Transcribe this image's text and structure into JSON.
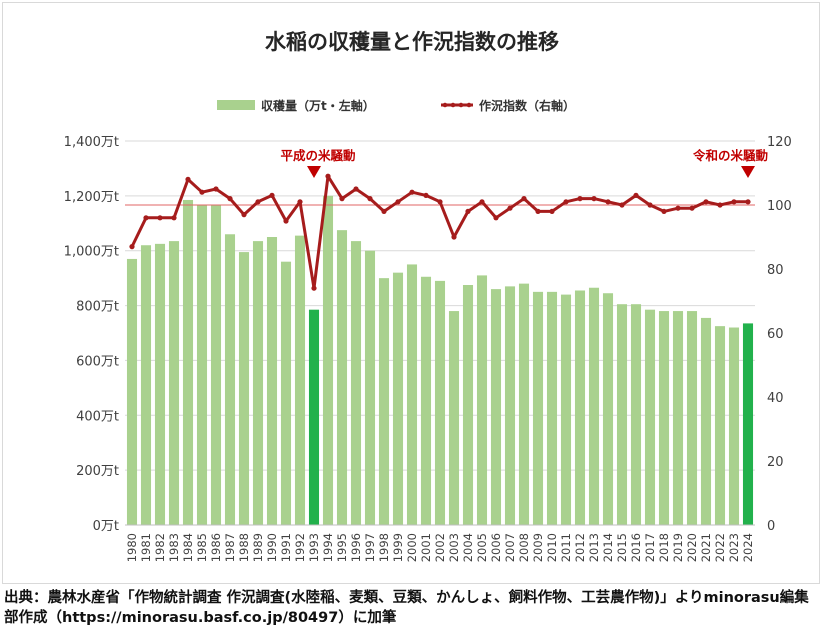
{
  "chart_data": {
    "type": "bar",
    "title": "水稲の収穫量と作況指数の推移",
    "legend": [
      {
        "name": "収穫量（万t・左軸）",
        "color": "#a9d18e",
        "kind": "bar"
      },
      {
        "name": "作況指数（右軸）",
        "color": "#a61c1c",
        "kind": "line"
      }
    ],
    "legend_position": "top-center",
    "categories": [
      "1980",
      "1981",
      "1982",
      "1983",
      "1984",
      "1985",
      "1986",
      "1987",
      "1988",
      "1989",
      "1990",
      "1991",
      "1992",
      "1993",
      "1994",
      "1995",
      "1996",
      "1997",
      "1998",
      "1999",
      "2000",
      "2001",
      "2002",
      "2003",
      "2004",
      "2005",
      "2006",
      "2007",
      "2008",
      "2009",
      "2010",
      "2011",
      "2012",
      "2013",
      "2014",
      "2015",
      "2016",
      "2017",
      "2018",
      "2019",
      "2020",
      "2021",
      "2022",
      "2023",
      "2024"
    ],
    "series": [
      {
        "name": "収穫量（万t・左軸）",
        "axis": "left",
        "type": "bar",
        "values": [
          970,
          1020,
          1025,
          1035,
          1185,
          1165,
          1165,
          1060,
          995,
          1035,
          1050,
          960,
          1055,
          785,
          1200,
          1075,
          1035,
          1000,
          900,
          920,
          950,
          905,
          890,
          780,
          875,
          910,
          860,
          870,
          880,
          850,
          850,
          840,
          855,
          865,
          845,
          805,
          805,
          785,
          780,
          780,
          780,
          755,
          725,
          720,
          735
        ],
        "highlight": [
          13,
          44
        ],
        "highlight_color": "#22b14c"
      },
      {
        "name": "作況指数（右軸）",
        "axis": "right",
        "type": "line",
        "values": [
          87,
          96,
          96,
          96,
          108,
          104,
          105,
          102,
          97,
          101,
          103,
          95,
          101,
          74,
          109,
          102,
          105,
          102,
          98,
          101,
          104,
          103,
          101,
          90,
          98,
          101,
          96,
          99,
          102,
          98,
          98,
          101,
          102,
          102,
          101,
          100,
          103,
          100,
          98,
          99,
          99,
          101,
          100,
          101,
          101
        ]
      }
    ],
    "reference_line": {
      "axis": "right",
      "value": 100,
      "color": "#e06666"
    },
    "left_axis": {
      "ylim": [
        0,
        1400
      ],
      "ticks": [
        0,
        200,
        400,
        600,
        800,
        1000,
        1200,
        1400
      ],
      "tick_labels": [
        "0万t",
        "200万t",
        "400万t",
        "600万t",
        "800万t",
        "1,000万t",
        "1,200万t",
        "1,400万t"
      ]
    },
    "right_axis": {
      "ylim": [
        0,
        120
      ],
      "ticks": [
        0,
        20,
        40,
        60,
        80,
        100,
        120
      ],
      "tick_labels": [
        "0",
        "20",
        "40",
        "60",
        "80",
        "100",
        "120"
      ]
    },
    "grid": true,
    "annotations": [
      {
        "text": "平成の米騒動",
        "category": "1993",
        "color": "#c00000"
      },
      {
        "text": "令和の米騒動",
        "category": "2024",
        "color": "#c00000"
      }
    ]
  },
  "source": {
    "line": "出典：農林水産省「作物統計調査 作況調査(水陸稲、麦類、豆類、かんしょ、飼料作物、工芸農作物)」よりminorasu編集部作成",
    "url": "（https://minorasu.basf.co.jp/80497）",
    "suffix": "に加筆"
  }
}
